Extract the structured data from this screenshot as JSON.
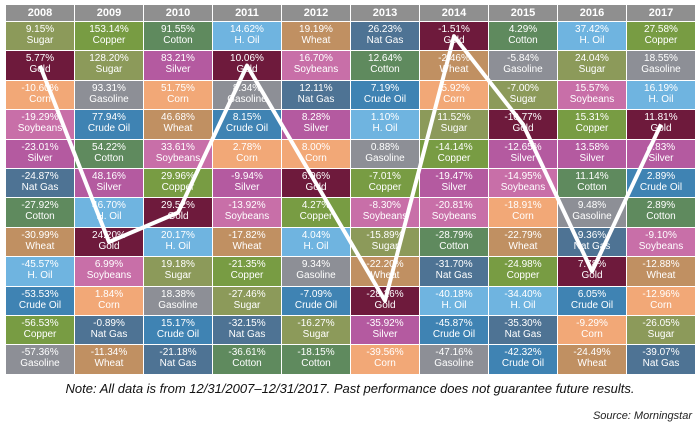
{
  "chart_data": {
    "type": "table",
    "years": [
      "2008",
      "2009",
      "2010",
      "2011",
      "2012",
      "2013",
      "2014",
      "2015",
      "2016",
      "2017"
    ],
    "columns": [
      [
        [
          "9.15%",
          "Sugar"
        ],
        [
          "5.77%",
          "Gold"
        ],
        [
          "-10.60%",
          "Corn"
        ],
        [
          "-19.29%",
          "Soybeans"
        ],
        [
          "-23.01%",
          "Silver"
        ],
        [
          "-24.87%",
          "Nat Gas"
        ],
        [
          "-27.92%",
          "Cotton"
        ],
        [
          "-30.99%",
          "Wheat"
        ],
        [
          "-45.57%",
          "H. Oil"
        ],
        [
          "-53.53%",
          "Crude Oil"
        ],
        [
          "-56.53%",
          "Copper"
        ],
        [
          "-57.36%",
          "Gasoline"
        ]
      ],
      [
        [
          "153.14%",
          "Copper"
        ],
        [
          "128.20%",
          "Sugar"
        ],
        [
          "93.31%",
          "Gasoline"
        ],
        [
          "77.94%",
          "Crude Oil"
        ],
        [
          "54.22%",
          "Cotton"
        ],
        [
          "48.16%",
          "Silver"
        ],
        [
          "46.70%",
          "H. Oil"
        ],
        [
          "24.20%",
          "Gold"
        ],
        [
          "6.99%",
          "Soybeans"
        ],
        [
          "1.84%",
          "Corn"
        ],
        [
          "-0.89%",
          "Nat Gas"
        ],
        [
          "-11.34%",
          "Wheat"
        ]
      ],
      [
        [
          "91.55%",
          "Cotton"
        ],
        [
          "83.21%",
          "Silver"
        ],
        [
          "51.75%",
          "Corn"
        ],
        [
          "46.68%",
          "Wheat"
        ],
        [
          "33.61%",
          "Soybeans"
        ],
        [
          "29.96%",
          "Copper"
        ],
        [
          "29.52%",
          "Gold"
        ],
        [
          "20.17%",
          "H. Oil"
        ],
        [
          "19.18%",
          "Sugar"
        ],
        [
          "18.38%",
          "Gasoline"
        ],
        [
          "15.17%",
          "Crude Oil"
        ],
        [
          "-21.18%",
          "Nat Gas"
        ]
      ],
      [
        [
          "14.62%",
          "H. Oil"
        ],
        [
          "10.06%",
          "Gold"
        ],
        [
          "8.34%",
          "Gasoline"
        ],
        [
          "8.15%",
          "Crude Oil"
        ],
        [
          "2.78%",
          "Corn"
        ],
        [
          "-9.94%",
          "Silver"
        ],
        [
          "-13.92%",
          "Soybeans"
        ],
        [
          "-17.82%",
          "Wheat"
        ],
        [
          "-21.35%",
          "Copper"
        ],
        [
          "-27.46%",
          "Sugar"
        ],
        [
          "-32.15%",
          "Nat Gas"
        ],
        [
          "-36.61%",
          "Cotton"
        ]
      ],
      [
        [
          "19.19%",
          "Wheat"
        ],
        [
          "16.70%",
          "Soybeans"
        ],
        [
          "12.11%",
          "Nat Gas"
        ],
        [
          "8.28%",
          "Silver"
        ],
        [
          "8.00%",
          "Corn"
        ],
        [
          "6.96%",
          "Gold"
        ],
        [
          "4.27%",
          "Copper"
        ],
        [
          "4.04%",
          "H. Oil"
        ],
        [
          "9.34%",
          "Gasoline"
        ],
        [
          "-7.09%",
          "Crude Oil"
        ],
        [
          "-16.27%",
          "Sugar"
        ],
        [
          "-18.15%",
          "Cotton"
        ]
      ],
      [
        [
          "26.23%",
          "Nat Gas"
        ],
        [
          "12.64%",
          "Cotton"
        ],
        [
          "7.19%",
          "Crude Oil"
        ],
        [
          "1.10%",
          "H. Oil"
        ],
        [
          "0.88%",
          "Gasoline"
        ],
        [
          "-7.01%",
          "Copper"
        ],
        [
          "-8.30%",
          "Soybeans"
        ],
        [
          "-15.89%",
          "Sugar"
        ],
        [
          "-22.20%",
          "Wheat"
        ],
        [
          "-28.26%",
          "Gold"
        ],
        [
          "-35.92%",
          "Silver"
        ],
        [
          "-39.56%",
          "Corn"
        ]
      ],
      [
        [
          "-1.51%",
          "Gold"
        ],
        [
          "-2.46%",
          "Wheat"
        ],
        [
          "-5.92%",
          "Corn"
        ],
        [
          "11.52%",
          "Sugar"
        ],
        [
          "-14.14%",
          "Copper"
        ],
        [
          "-19.47%",
          "Silver"
        ],
        [
          "-20.81%",
          "Soybeans"
        ],
        [
          "-28.79%",
          "Cotton"
        ],
        [
          "-31.70%",
          "Nat Gas"
        ],
        [
          "-40.18%",
          "H. Oil"
        ],
        [
          "-45.87%",
          "Crude Oil"
        ],
        [
          "-47.16%",
          "Gasoline"
        ]
      ],
      [
        [
          "4.29%",
          "Cotton"
        ],
        [
          "-5.84%",
          "Gasoline"
        ],
        [
          "-7.00%",
          "Sugar"
        ],
        [
          "-10.77%",
          "Gold"
        ],
        [
          "-12.65%",
          "Silver"
        ],
        [
          "-14.95%",
          "Soybeans"
        ],
        [
          "-18.91%",
          "Corn"
        ],
        [
          "-22.79%",
          "Wheat"
        ],
        [
          "-24.98%",
          "Copper"
        ],
        [
          "-34.40%",
          "H. Oil"
        ],
        [
          "-35.30%",
          "Nat Gas"
        ],
        [
          "-42.32%",
          "Crude Oil"
        ]
      ],
      [
        [
          "37.42%",
          "H. Oil"
        ],
        [
          "24.04%",
          "Sugar"
        ],
        [
          "15.57%",
          "Soybeans"
        ],
        [
          "15.31%",
          "Copper"
        ],
        [
          "13.58%",
          "Silver"
        ],
        [
          "11.14%",
          "Cotton"
        ],
        [
          "9.48%",
          "Gasoline"
        ],
        [
          "9.36%",
          "Nat Gas"
        ],
        [
          "7.78%",
          "Gold"
        ],
        [
          "6.05%",
          "Crude Oil"
        ],
        [
          "-9.29%",
          "Corn"
        ],
        [
          "-24.49%",
          "Wheat"
        ]
      ],
      [
        [
          "27.58%",
          "Copper"
        ],
        [
          "18.55%",
          "Gasoline"
        ],
        [
          "16.19%",
          "H. Oil"
        ],
        [
          "11.81%",
          "Gold"
        ],
        [
          "4.83%",
          "Silver"
        ],
        [
          "2.89%",
          "Crude Oil"
        ],
        [
          "2.89%",
          "Cotton"
        ],
        [
          "-9.10%",
          "Soybeans"
        ],
        [
          "-12.88%",
          "Wheat"
        ],
        [
          "-12.96%",
          "Corn"
        ],
        [
          "-26.05%",
          "Sugar"
        ],
        [
          "-39.07%",
          "Nat Gas"
        ]
      ]
    ],
    "commodity_colors": {
      "Sugar": "#8c9a5a",
      "Gold": "#6e1a3c",
      "Corn": "#f2a877",
      "Soybeans": "#c86fa8",
      "Silver": "#b45aa0",
      "Nat Gas": "#4e7394",
      "Cotton": "#5f8a5e",
      "Wheat": "#c09062",
      "H. Oil": "#6fb4e0",
      "Crude Oil": "#3f83b3",
      "Copper": "#789c43",
      "Gasoline": "#8d8f96"
    },
    "highlight": "Gold",
    "header_color": "#8f8f8f"
  },
  "footer": {
    "note": "Note: All data is from 12/31/2007–12/31/2017. Past performance does not guarantee future results.",
    "source": "Source: Morningstar"
  }
}
